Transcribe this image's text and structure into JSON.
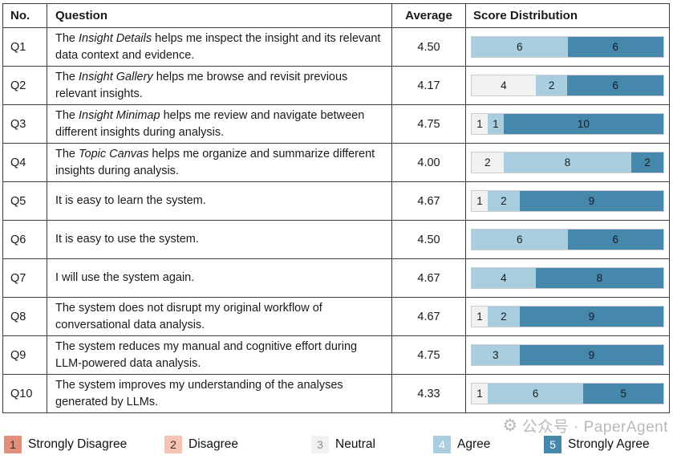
{
  "table": {
    "headers": [
      "No.",
      "Question",
      "Average",
      "Score Distribution"
    ],
    "rows": [
      {
        "no": "Q1",
        "question": {
          "pre": "The ",
          "italic": "Insight Details",
          "post": " helps me inspect the insight and its relevant data context and evidence."
        },
        "average": "4.50",
        "segments": [
          {
            "score": 4,
            "count": 6
          },
          {
            "score": 5,
            "count": 6
          }
        ]
      },
      {
        "no": "Q2",
        "question": {
          "pre": "The ",
          "italic": "Insight Gallery",
          "post": " helps me browse and revisit previous relevant insights."
        },
        "average": "4.17",
        "segments": [
          {
            "score": 3,
            "count": 4
          },
          {
            "score": 4,
            "count": 2
          },
          {
            "score": 5,
            "count": 6
          }
        ]
      },
      {
        "no": "Q3",
        "question": {
          "pre": "The ",
          "italic": "Insight Minimap",
          "post": " helps me review and navigate between different insights during analysis."
        },
        "average": "4.75",
        "segments": [
          {
            "score": 3,
            "count": 1
          },
          {
            "score": 4,
            "count": 1
          },
          {
            "score": 5,
            "count": 10
          }
        ]
      },
      {
        "no": "Q4",
        "question": {
          "pre": "The ",
          "italic": "Topic Canvas",
          "post": " helps me organize and summarize different insights during analysis."
        },
        "average": "4.00",
        "segments": [
          {
            "score": 3,
            "count": 2
          },
          {
            "score": 4,
            "count": 8
          },
          {
            "score": 5,
            "count": 2
          }
        ]
      },
      {
        "no": "Q5",
        "question": {
          "pre": "It is easy to learn the system.",
          "italic": "",
          "post": ""
        },
        "average": "4.67",
        "segments": [
          {
            "score": 3,
            "count": 1
          },
          {
            "score": 4,
            "count": 2
          },
          {
            "score": 5,
            "count": 9
          }
        ]
      },
      {
        "no": "Q6",
        "question": {
          "pre": "It is easy to use the system.",
          "italic": "",
          "post": ""
        },
        "average": "4.50",
        "segments": [
          {
            "score": 4,
            "count": 6
          },
          {
            "score": 5,
            "count": 6
          }
        ]
      },
      {
        "no": "Q7",
        "question": {
          "pre": "I will use the system again.",
          "italic": "",
          "post": ""
        },
        "average": "4.67",
        "segments": [
          {
            "score": 4,
            "count": 4
          },
          {
            "score": 5,
            "count": 8
          }
        ]
      },
      {
        "no": "Q8",
        "question": {
          "pre": "The system does not disrupt my original workflow of conversational data analysis.",
          "italic": "",
          "post": ""
        },
        "average": "4.67",
        "segments": [
          {
            "score": 3,
            "count": 1
          },
          {
            "score": 4,
            "count": 2
          },
          {
            "score": 5,
            "count": 9
          }
        ]
      },
      {
        "no": "Q9",
        "question": {
          "pre": "The system reduces my manual and cognitive effort during LLM-powered data analysis.",
          "italic": "",
          "post": ""
        },
        "average": "4.75",
        "segments": [
          {
            "score": 4,
            "count": 3
          },
          {
            "score": 5,
            "count": 9
          }
        ]
      },
      {
        "no": "Q10",
        "question": {
          "pre": "The system improves my understanding of the analyses generated by LLMs.",
          "italic": "",
          "post": ""
        },
        "average": "4.33",
        "segments": [
          {
            "score": 3,
            "count": 1
          },
          {
            "score": 4,
            "count": 6
          },
          {
            "score": 5,
            "count": 5
          }
        ]
      }
    ]
  },
  "legend": {
    "items": [
      {
        "score": "1",
        "label": "Strongly Disagree"
      },
      {
        "score": "2",
        "label": "Disagree"
      },
      {
        "score": "3",
        "label": "Neutral"
      },
      {
        "score": "4",
        "label": "Agree"
      },
      {
        "score": "5",
        "label": "Strongly Agree"
      }
    ]
  },
  "colors": {
    "score1": "#E28F7D",
    "score2": "#F6C4B4",
    "score3": "#F1F1F1",
    "score4": "#A8CEE0",
    "score5": "#4687AC"
  },
  "watermark": {
    "icon": "gear-seal-icon",
    "icon_glyph": "⚙",
    "text": "公众号 · PaperAgent"
  },
  "chart_data": {
    "type": "bar",
    "subtype": "horizontal-stacked",
    "title": "Score Distribution",
    "categories": [
      "Q1",
      "Q2",
      "Q3",
      "Q4",
      "Q5",
      "Q6",
      "Q7",
      "Q8",
      "Q9",
      "Q10"
    ],
    "series": [
      {
        "name": "Strongly Disagree",
        "score": 1,
        "values": [
          0,
          0,
          0,
          0,
          0,
          0,
          0,
          0,
          0,
          0
        ]
      },
      {
        "name": "Disagree",
        "score": 2,
        "values": [
          0,
          0,
          0,
          0,
          0,
          0,
          0,
          0,
          0,
          0
        ]
      },
      {
        "name": "Neutral",
        "score": 3,
        "values": [
          0,
          4,
          1,
          2,
          1,
          0,
          0,
          1,
          0,
          1
        ]
      },
      {
        "name": "Agree",
        "score": 4,
        "values": [
          6,
          2,
          1,
          8,
          2,
          6,
          4,
          2,
          3,
          6
        ]
      },
      {
        "name": "Strongly Agree",
        "score": 5,
        "values": [
          6,
          6,
          10,
          2,
          9,
          6,
          8,
          9,
          9,
          5
        ]
      }
    ],
    "averages": [
      4.5,
      4.17,
      4.75,
      4.0,
      4.67,
      4.5,
      4.67,
      4.67,
      4.75,
      4.33
    ],
    "xlim": [
      0,
      12
    ],
    "grid": false,
    "legend_position": "bottom"
  }
}
